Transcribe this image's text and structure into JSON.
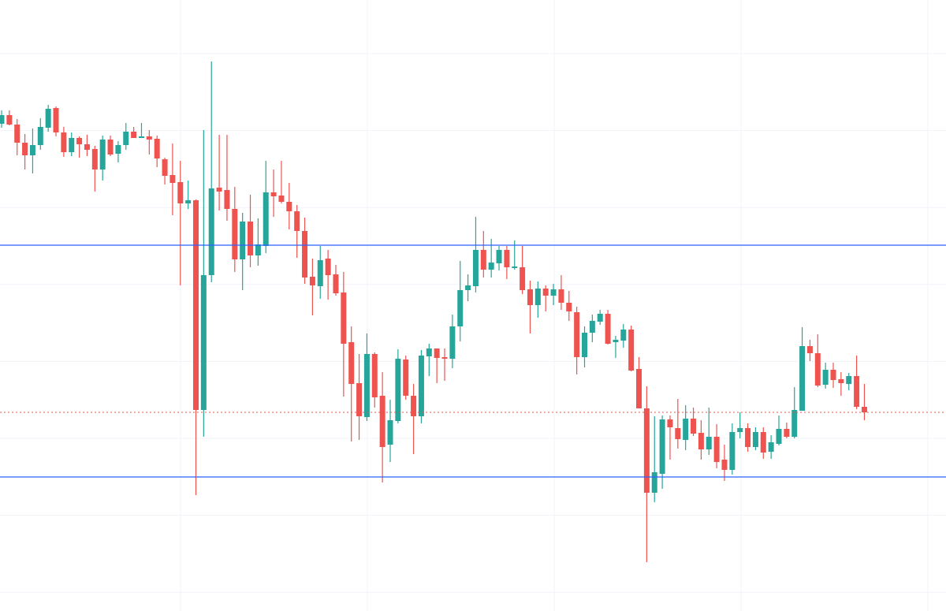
{
  "chart_data": {
    "type": "candlestick",
    "title": "",
    "xlabel": "",
    "ylabel": "",
    "ylim": [
      22.5,
      100
    ],
    "grid": true,
    "legend": "none",
    "colors": {
      "up": "#26a69a",
      "down": "#ef5350",
      "horizontal_line": "#2962ff",
      "last_price_line": "#ef5350",
      "grid": "#f0f3fa",
      "background": "#ffffff"
    },
    "ohlc_fields": [
      "open",
      "high",
      "low",
      "close"
    ],
    "candles": [
      [
        84.3,
        86.0,
        83.8,
        85.4
      ],
      [
        85.4,
        86.0,
        84.1,
        84.2
      ],
      [
        84.2,
        84.9,
        80.3,
        81.9
      ],
      [
        81.9,
        83.0,
        78.5,
        80.3
      ],
      [
        80.3,
        83.7,
        78.0,
        81.6
      ],
      [
        81.6,
        85.0,
        81.0,
        83.9
      ],
      [
        83.8,
        86.7,
        83.3,
        86.2
      ],
      [
        86.3,
        86.5,
        82.7,
        83.2
      ],
      [
        83.2,
        83.9,
        80.1,
        80.7
      ],
      [
        80.7,
        83.2,
        80.2,
        82.5
      ],
      [
        82.5,
        82.7,
        80.0,
        81.7
      ],
      [
        81.7,
        82.9,
        80.2,
        81.0
      ],
      [
        81.1,
        81.5,
        75.7,
        78.5
      ],
      [
        78.5,
        82.8,
        77.1,
        82.3
      ],
      [
        82.3,
        82.8,
        80.2,
        80.4
      ],
      [
        80.5,
        82.1,
        79.4,
        81.6
      ],
      [
        81.6,
        84.4,
        81.0,
        83.3
      ],
      [
        83.3,
        83.9,
        82.5,
        82.5
      ],
      [
        82.5,
        84.4,
        82.5,
        82.7
      ],
      [
        82.7,
        83.5,
        80.4,
        82.3
      ],
      [
        82.4,
        82.8,
        78.8,
        79.9
      ],
      [
        79.8,
        80.0,
        76.6,
        77.7
      ],
      [
        77.8,
        81.8,
        72.7,
        76.8
      ],
      [
        76.9,
        79.6,
        63.8,
        74.2
      ],
      [
        74.2,
        77.1,
        73.5,
        74.6
      ],
      [
        74.6,
        74.7,
        37.2,
        48.0
      ],
      [
        48.0,
        83.5,
        44.6,
        65.1
      ],
      [
        65.1,
        92.2,
        64.2,
        76.1
      ],
      [
        76.2,
        82.9,
        73.3,
        75.7
      ],
      [
        75.9,
        82.9,
        72.0,
        73.5
      ],
      [
        73.5,
        76.3,
        65.5,
        67.1
      ],
      [
        67.1,
        73.0,
        63.2,
        71.9
      ],
      [
        71.9,
        75.3,
        66.1,
        67.6
      ],
      [
        67.6,
        72.3,
        66.3,
        69.0
      ],
      [
        68.8,
        79.6,
        67.9,
        75.6
      ],
      [
        75.6,
        78.5,
        72.5,
        75.1
      ],
      [
        75.2,
        79.6,
        74.2,
        74.4
      ],
      [
        74.4,
        76.8,
        70.9,
        73.2
      ],
      [
        73.2,
        74.0,
        67.3,
        70.7
      ],
      [
        70.7,
        72.4,
        64.0,
        64.8
      ],
      [
        64.9,
        67.2,
        60.0,
        63.8
      ],
      [
        63.7,
        68.8,
        62.1,
        67.0
      ],
      [
        67.2,
        68.3,
        62.0,
        65.1
      ],
      [
        65.2,
        66.4,
        62.5,
        62.8
      ],
      [
        62.9,
        65.5,
        49.7,
        56.4
      ],
      [
        56.6,
        58.6,
        44.0,
        51.3
      ],
      [
        51.4,
        55.1,
        44.2,
        47.2
      ],
      [
        47.1,
        57.7,
        46.6,
        55.1
      ],
      [
        55.1,
        55.3,
        48.3,
        49.6
      ],
      [
        49.8,
        52.8,
        38.8,
        43.3
      ],
      [
        43.6,
        49.3,
        41.4,
        46.7
      ],
      [
        46.6,
        55.7,
        46.3,
        54.5
      ],
      [
        54.4,
        54.9,
        49.3,
        49.8
      ],
      [
        49.8,
        51.3,
        42.4,
        47.2
      ],
      [
        47.2,
        55.6,
        46.3,
        54.9
      ],
      [
        54.8,
        56.4,
        52.3,
        55.8
      ],
      [
        55.8,
        55.8,
        51.4,
        54.6
      ],
      [
        54.7,
        55.8,
        51.7,
        54.5
      ],
      [
        54.5,
        60.1,
        53.3,
        58.6
      ],
      [
        58.6,
        66.9,
        56.7,
        63.2
      ],
      [
        63.2,
        65.2,
        61.8,
        63.8
      ],
      [
        63.7,
        72.5,
        62.9,
        68.3
      ],
      [
        68.3,
        70.7,
        64.8,
        65.8
      ],
      [
        65.8,
        69.7,
        64.8,
        66.7
      ],
      [
        66.6,
        68.8,
        65.7,
        68.3
      ],
      [
        68.3,
        68.8,
        64.6,
        66.1
      ],
      [
        66.0,
        69.5,
        65.8,
        66.2
      ],
      [
        66.1,
        68.8,
        62.7,
        63.2
      ],
      [
        63.3,
        64.4,
        57.7,
        61.3
      ],
      [
        61.3,
        64.3,
        59.7,
        63.4
      ],
      [
        63.4,
        63.8,
        60.5,
        62.5
      ],
      [
        62.5,
        64.0,
        61.3,
        63.3
      ],
      [
        63.3,
        65.1,
        60.7,
        61.6
      ],
      [
        61.6,
        63.1,
        59.3,
        60.5
      ],
      [
        60.4,
        61.1,
        52.5,
        54.7
      ],
      [
        54.7,
        58.6,
        53.4,
        57.8
      ],
      [
        57.8,
        60.1,
        56.6,
        59.3
      ],
      [
        59.2,
        60.7,
        58.8,
        60.2
      ],
      [
        60.2,
        60.7,
        56.3,
        56.4
      ],
      [
        56.6,
        57.4,
        54.6,
        56.9
      ],
      [
        56.8,
        58.9,
        55.9,
        58.2
      ],
      [
        58.2,
        58.7,
        52.9,
        53.0
      ],
      [
        53.2,
        54.7,
        48.2,
        48.2
      ],
      [
        48.2,
        51.0,
        28.7,
        37.5
      ],
      [
        37.5,
        47.2,
        36.3,
        40.1
      ],
      [
        39.9,
        47.3,
        38.0,
        46.8
      ],
      [
        46.8,
        47.3,
        41.7,
        45.8
      ],
      [
        45.7,
        49.4,
        43.1,
        44.3
      ],
      [
        44.2,
        48.6,
        42.9,
        46.9
      ],
      [
        46.9,
        48.3,
        44.7,
        45.0
      ],
      [
        45.1,
        46.7,
        41.7,
        43.0
      ],
      [
        43.0,
        48.3,
        42.3,
        44.6
      ],
      [
        44.6,
        46.2,
        40.6,
        41.4
      ],
      [
        41.7,
        43.6,
        39.0,
        40.4
      ],
      [
        40.4,
        46.3,
        39.8,
        45.2
      ],
      [
        45.2,
        47.7,
        44.4,
        45.7
      ],
      [
        45.7,
        46.3,
        42.7,
        43.3
      ],
      [
        43.3,
        45.8,
        42.9,
        45.2
      ],
      [
        45.2,
        45.8,
        41.8,
        42.6
      ],
      [
        42.7,
        44.8,
        41.8,
        43.9
      ],
      [
        43.7,
        47.3,
        43.5,
        45.6
      ],
      [
        45.6,
        46.4,
        44.4,
        44.6
      ],
      [
        44.6,
        50.9,
        44.4,
        48.0
      ],
      [
        47.9,
        58.5,
        47.9,
        56.1
      ],
      [
        56.1,
        56.9,
        54.2,
        55.2
      ],
      [
        55.2,
        57.6,
        50.9,
        51.1
      ],
      [
        51.2,
        54.0,
        50.7,
        53.1
      ],
      [
        53.1,
        54.0,
        50.8,
        51.8
      ],
      [
        51.9,
        52.8,
        49.8,
        51.4
      ],
      [
        51.3,
        52.7,
        50.5,
        52.3
      ],
      [
        52.3,
        54.9,
        48.1,
        48.4
      ],
      [
        48.4,
        51.3,
        46.7,
        47.7
      ]
    ],
    "horizontal_lines": [
      68.9,
      39.5
    ],
    "last_price": 47.7
  }
}
